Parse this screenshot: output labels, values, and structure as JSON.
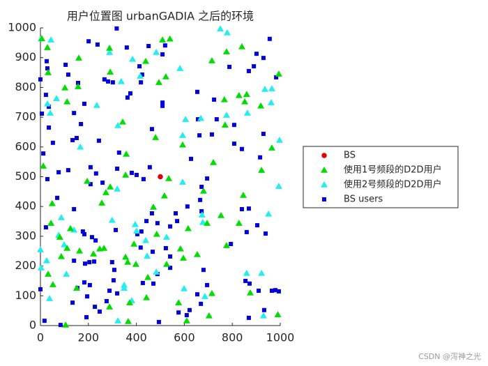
{
  "chart_data": {
    "type": "scatter",
    "title": "用户位置图 urbanGADIA 之后的环境",
    "xlim": [
      0,
      1000
    ],
    "ylim": [
      0,
      1000
    ],
    "xticks": [
      0,
      200,
      400,
      600,
      800,
      1000
    ],
    "yticks": [
      0,
      100,
      200,
      300,
      400,
      500,
      600,
      700,
      800,
      900,
      1000
    ],
    "legend": "right",
    "series": [
      {
        "name": "BS",
        "color": "#e60000",
        "marker": "circle",
        "x": [
          500
        ],
        "y": [
          500
        ]
      },
      {
        "name": "使用1号频段的D2D用户",
        "color": "#00dd00",
        "marker": "triangle",
        "x": [
          6,
          29,
          32,
          102,
          160,
          111,
          157,
          288,
          291,
          343,
          439,
          509,
          540,
          523,
          494,
          715,
          840,
          776,
          860,
          828,
          852,
          767,
          770,
          919,
          994,
          965,
          922,
          846,
          680,
          721,
          593,
          480,
          517,
          535,
          471,
          358,
          355,
          291,
          256,
          273,
          195,
          12,
          49,
          44,
          125,
          111,
          81,
          32,
          52,
          87,
          105,
          151,
          163,
          247,
          265,
          221,
          390,
          355,
          364,
          398,
          366,
          442,
          372,
          448,
          526,
          584,
          596,
          576,
          610,
          703,
          753,
          695,
          828,
          776,
          875,
          990,
          288,
          654,
          715,
          485,
          616
        ],
        "y": [
          964,
          934,
          850,
          799,
          899,
          752,
          803,
          932,
          852,
          684,
          888,
          960,
          963,
          836,
          817,
          890,
          937,
          920,
          777,
          773,
          752,
          759,
          674,
          738,
          845,
          597,
          522,
          438,
          452,
          548,
          607,
          632,
          436,
          494,
          398,
          576,
          506,
          466,
          412,
          447,
          485,
          536,
          410,
          344,
          326,
          260,
          297,
          173,
          138,
          232,
          2,
          126,
          251,
          258,
          260,
          241,
          274,
          230,
          213,
          206,
          14,
          94,
          77,
          162,
          206,
          258,
          227,
          77,
          16,
          33,
          370,
          344,
          344,
          269,
          110,
          37,
          63,
          239,
          108,
          307,
          326
        ]
      },
      {
        "name": "使用2号频段的D2D用户",
        "color": "#22eef0",
        "marker": "triangle",
        "x": [
          3,
          44,
          288,
          384,
          483,
          582,
          750,
          779,
          965,
          936,
          962,
          863,
          776,
          669,
          605,
          593,
          416,
          337,
          235,
          166,
          29,
          41,
          67,
          323,
          320,
          997,
          994,
          951,
          674,
          677,
          860,
          930,
          922,
          395,
          401,
          439,
          445,
          349,
          349,
          323,
          381,
          483,
          599,
          686,
          593,
          87,
          99,
          76,
          0,
          3,
          38,
          108,
          26,
          140,
          299,
          526
        ],
        "y": [
          964,
          960,
          918,
          895,
          918,
          864,
          997,
          984,
          796,
          794,
          749,
          714,
          707,
          696,
          693,
          639,
          838,
          820,
          740,
          600,
          745,
          714,
          763,
          672,
          459,
          623,
          468,
          375,
          372,
          347,
          176,
          33,
          176,
          340,
          318,
          286,
          234,
          136,
          126,
          16,
          84,
          180,
          124,
          98,
          482,
          363,
          272,
          304,
          255,
          194,
          91,
          173,
          218,
          321,
          354,
          297
        ]
      },
      {
        "name": "BS users",
        "color": "#0000e0",
        "marker": "square",
        "x": [
          0,
          26,
          29,
          23,
          35,
          6,
          35,
          52,
          12,
          76,
          29,
          116,
          105,
          116,
          157,
          140,
          134,
          169,
          151,
          183,
          201,
          238,
          267,
          209,
          209,
          232,
          244,
          282,
          302,
          318,
          360,
          375,
          363,
          419,
          424,
          413,
          451,
          509,
          520,
          509,
          509,
          465,
          456,
          401,
          430,
          381,
          320,
          328,
          259,
          654,
          657,
          724,
          735,
          808,
          788,
          869,
          901,
          890,
          956,
          930,
          983,
          930,
          808,
          840,
          916,
          715,
          663,
          628,
          695,
          672,
          666,
          672,
          613,
          564,
          541,
          570,
          488,
          465,
          442,
          421,
          404,
          418,
          468,
          523,
          541,
          541,
          488,
          471,
          427,
          494,
          576,
          610,
          622,
          680,
          695,
          669,
          654,
          794,
          860,
          840,
          869,
          904,
          939,
          855,
          872,
          910,
          965,
          980,
          994,
          933,
          869,
          192,
          195,
          154,
          134,
          84,
          17,
          0,
          23,
          70,
          140,
          177,
          183,
          215,
          230,
          224,
          204,
          186,
          140,
          183,
          206,
          314,
          299,
          308,
          305,
          288,
          320,
          276,
          247,
          227
        ],
        "y": [
          827,
          888,
          864,
          775,
          735,
          712,
          665,
          614,
          578,
          515,
          492,
          522,
          876,
          843,
          815,
          714,
          623,
          677,
          630,
          745,
          955,
          944,
          827,
          532,
          475,
          511,
          621,
          820,
          817,
          998,
          934,
          780,
          766,
          817,
          843,
          871,
          939,
          911,
          941,
          749,
          738,
          660,
          532,
          506,
          492,
          513,
          527,
          581,
          480,
          785,
          693,
          759,
          693,
          674,
          869,
          855,
          913,
          871,
          963,
          899,
          834,
          644,
          611,
          593,
          565,
          642,
          639,
          560,
          494,
          466,
          422,
          384,
          400,
          377,
          333,
          351,
          344,
          377,
          351,
          316,
          307,
          262,
          248,
          260,
          232,
          194,
          173,
          141,
          143,
          12,
          44,
          35,
          52,
          187,
          136,
          73,
          105,
          274,
          314,
          391,
          393,
          337,
          309,
          150,
          141,
          117,
          117,
          119,
          115,
          52,
          26,
          28,
          98,
          126,
          77,
          2,
          16,
          122,
          330,
          429,
          391,
          316,
          307,
          297,
          286,
          215,
          213,
          208,
          218,
          145,
          136,
          321,
          213,
          187,
          152,
          117,
          108,
          82,
          47,
          63
        ]
      }
    ]
  },
  "watermark": "CSDN @泻神之光"
}
